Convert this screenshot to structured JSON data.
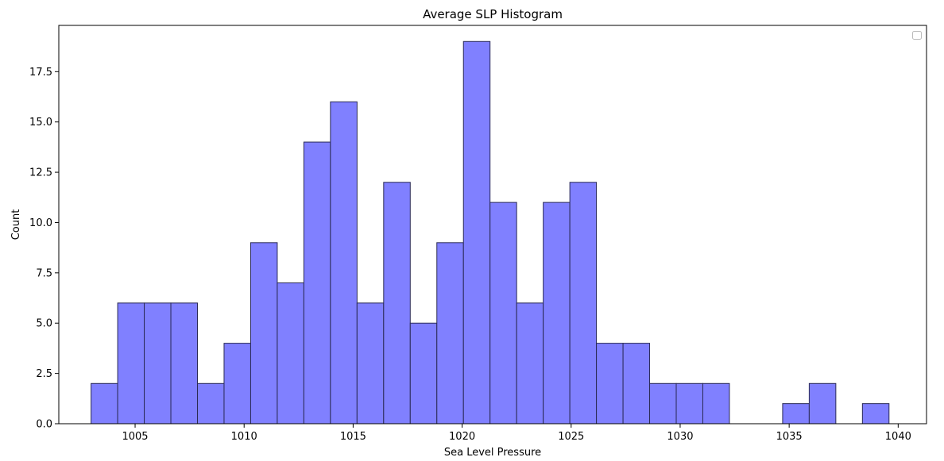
{
  "chart_data": {
    "type": "bar",
    "title": "Average SLP Histogram",
    "xlabel": "Sea Level Pressure",
    "ylabel": "Count",
    "xlim": [
      1001.5,
      1041.3
    ],
    "ylim": [
      0,
      19.8
    ],
    "xticks": [
      1005,
      1010,
      1015,
      1020,
      1025,
      1030,
      1035,
      1040
    ],
    "yticks": [
      0,
      2.5,
      5,
      7.5,
      10,
      12.5,
      15,
      17.5
    ],
    "xtick_labels": [
      "1005",
      "1010",
      "1015",
      "1020",
      "1025",
      "1030",
      "1035",
      "1040"
    ],
    "ytick_labels": [
      "0.0",
      "2.5",
      "5.0",
      "7.5",
      "10.0",
      "12.5",
      "15.0",
      "17.5"
    ],
    "bin_edges": [
      1002.98,
      1004.2,
      1005.42,
      1006.64,
      1007.86,
      1009.08,
      1010.3,
      1011.52,
      1012.74,
      1013.96,
      1015.18,
      1016.4,
      1017.62,
      1018.84,
      1020.06,
      1021.28,
      1022.5,
      1023.72,
      1024.94,
      1026.16,
      1027.38,
      1028.6,
      1029.82,
      1031.04,
      1032.26,
      1033.48,
      1034.7,
      1035.92,
      1037.14,
      1038.36,
      1039.58
    ],
    "counts": [
      2,
      6,
      6,
      6,
      2,
      4,
      9,
      7,
      14,
      16,
      6,
      12,
      5,
      9,
      19,
      11,
      6,
      11,
      12,
      4,
      4,
      2,
      2,
      2,
      0,
      0,
      1,
      2,
      0,
      1
    ],
    "bar_color": "#8080ff",
    "edge_color": "#2a2a55",
    "grid": false,
    "legend": "top-right (empty)"
  }
}
